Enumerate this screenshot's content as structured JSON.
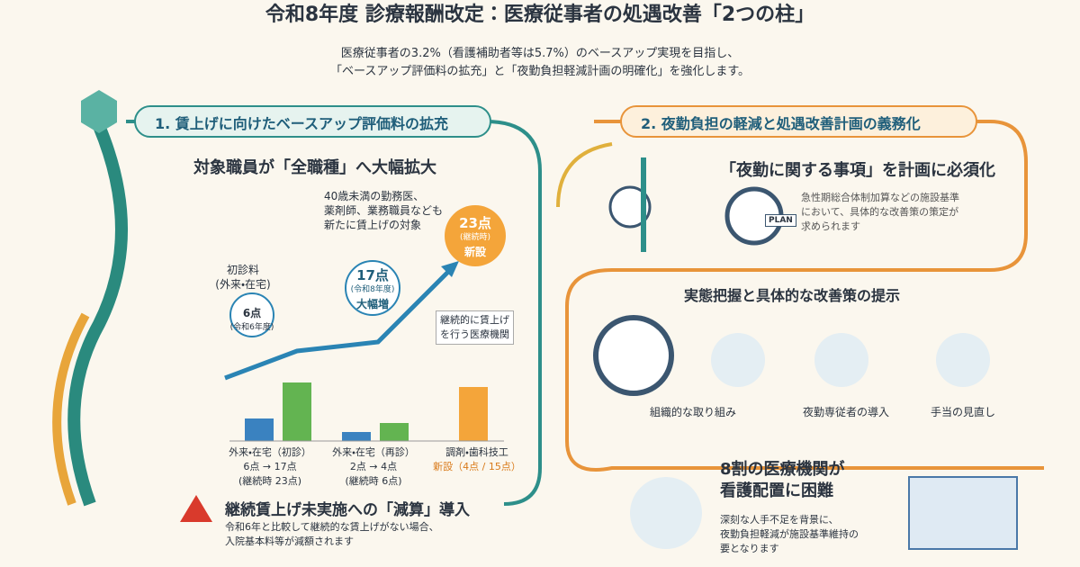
{
  "header": {
    "title": "令和8年度 診療報酬改定：医療従事者の処遇改善「2つの柱」",
    "intro": [
      "医療従事者の3.2%（看護補助者等は5.7%）のベースアップ実現を目指し、",
      "「ベースアップ評価料の拡充」と「夜勤負担軽減計画の明確化」を強化します。"
    ]
  },
  "pillar1": {
    "heading": "1. 賃上げに向けたベースアップ評価料の拡充",
    "subheading": "対象職員が「全職種」へ大幅拡大",
    "staff_note": [
      "40歳未満の勤務医、",
      "薬剤師、業務職員なども",
      "新たに賃上げの対象"
    ],
    "steps": [
      {
        "lines": [
          "初診料",
          "(外来・在宅)"
        ]
      },
      {
        "lines": [
          "6点",
          "(令和6年度)"
        ]
      },
      {
        "lines": [
          "17点",
          "(令和8年度)",
          "大幅増"
        ]
      },
      {
        "lines": [
          "23点",
          "(継続時)",
          "新設"
        ]
      }
    ],
    "callout": [
      "継続的に賃上げ",
      "を行う医療機関"
    ],
    "groups": [
      {
        "lines": [
          "外来・在宅（初診）",
          "6点 → 17点",
          "(継続時 23点)"
        ]
      },
      {
        "lines": [
          "外来・在宅（再診）",
          "2点 → 4点",
          "(継続時 6点)"
        ]
      },
      {
        "lines": [
          "調剤・歯科技工",
          "新設（4点 / 15点）"
        ]
      }
    ],
    "warning": {
      "title": "継続賃上げ未実施への「減算」導入",
      "lines": [
        "令和6年と比較して継続的な賃上げがない場合、",
        "入院基本料等が減額されます"
      ]
    }
  },
  "pillar2": {
    "heading": "2. 夜勤負担の軽減と処遇改善計画の義務化",
    "section1": {
      "title": "「夜勤に関する事項」を計画に必須化",
      "icon_label": "PLAN",
      "lines": [
        "急性期総合体制加算などの施設基準",
        "において、具体的な改善策の策定が",
        "求められます"
      ]
    },
    "section2": {
      "title": "実態把握と具体的な改善策の提示",
      "items": [
        "組織的な取り組み",
        "夜勤専従者の導入",
        "手当の見直し"
      ]
    },
    "section3": {
      "title": [
        "8割の医療機関が",
        "看護配置に困難"
      ],
      "lines": [
        "深刻な人手不足を背景に、",
        "夜勤負担軽減が施設基準維持の",
        "要となります"
      ]
    }
  }
}
